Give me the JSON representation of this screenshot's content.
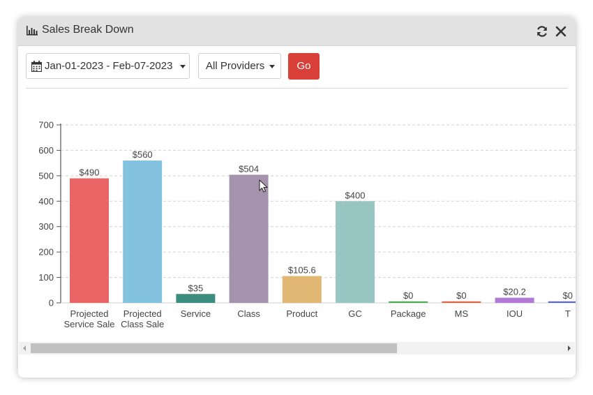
{
  "header": {
    "title": "Sales Break Down",
    "title_icon": "bar-chart-icon",
    "refresh_icon": "refresh-icon",
    "close_icon": "close-icon"
  },
  "filters": {
    "date_range": "Jan-01-2023 - Feb-07-2023",
    "provider": "All Providers",
    "go_label": "Go"
  },
  "chart_data": {
    "type": "bar",
    "categories": [
      "Projected Service Sale",
      "Projected Class Sale",
      "Service",
      "Class",
      "Product",
      "GC",
      "Package",
      "MS",
      "IOU",
      "T"
    ],
    "category_lines": [
      [
        "Projected",
        "Service Sale"
      ],
      [
        "Projected",
        "Class Sale"
      ],
      [
        "Service"
      ],
      [
        "Class"
      ],
      [
        "Product"
      ],
      [
        "GC"
      ],
      [
        "Package"
      ],
      [
        "MS"
      ],
      [
        "IOU"
      ],
      [
        "T"
      ]
    ],
    "values": [
      490,
      560,
      35,
      504,
      105.6,
      400,
      0,
      0,
      20.2,
      0
    ],
    "labels": [
      "$490",
      "$560",
      "$35",
      "$504",
      "$105.6",
      "$400",
      "$0",
      "$0",
      "$20.2",
      "$0"
    ],
    "colors": [
      "#ea6565",
      "#83c3e0",
      "#3c8d80",
      "#a592ac",
      "#e2b774",
      "#99c5c2",
      "#4caf50",
      "#e06644",
      "#b479d6",
      "#5c6bc0"
    ],
    "yticks": [
      0,
      100,
      200,
      300,
      400,
      500,
      600,
      700
    ],
    "ylim": [
      0,
      700
    ],
    "grid": true
  }
}
